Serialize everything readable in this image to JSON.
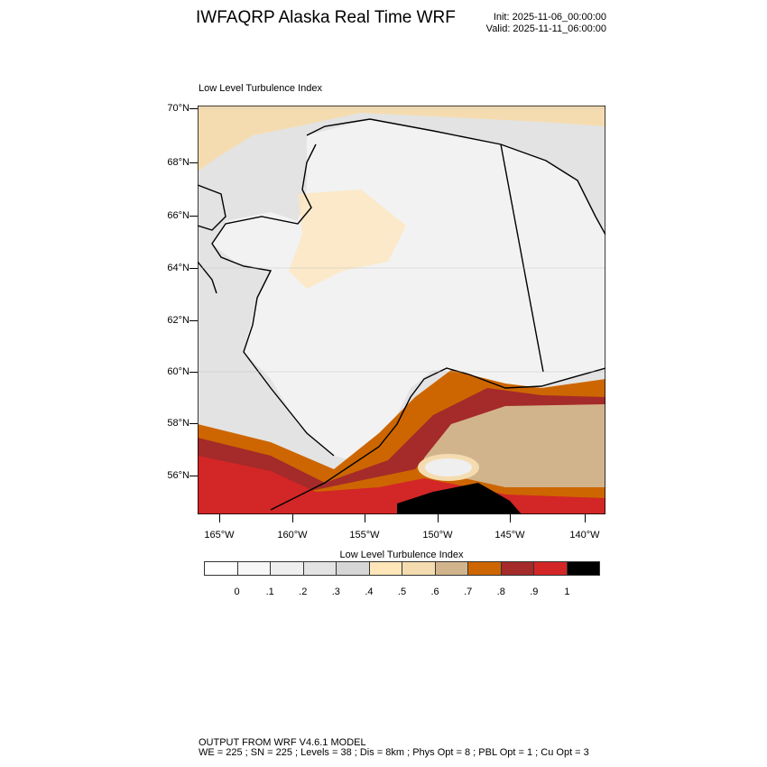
{
  "header": {
    "title": "IWFAQRP Alaska Real Time WRF",
    "init": "Init: 2025-11-06_00:00:00",
    "valid": "Valid: 2025-11-11_06:00:00"
  },
  "map": {
    "subtitle": "Low Level Turbulence Index",
    "lat_labels": [
      "70°N",
      "68°N",
      "66°N",
      "64°N",
      "62°N",
      "60°N",
      "58°N",
      "56°N"
    ],
    "lon_labels": [
      "165°W",
      "160°W",
      "155°W",
      "150°W",
      "145°W",
      "140°W"
    ]
  },
  "colorbar": {
    "title": "Low Level Turbulence Index",
    "colors": [
      "#ffffff",
      "#f7f7f7",
      "#efefef",
      "#e3e3e3",
      "#d6d6d6",
      "#ffe6b8",
      "#f5dcb0",
      "#d2b48c",
      "#cd6600",
      "#a52a2a",
      "#d32626",
      "#000000"
    ],
    "labels": [
      "0",
      ".1",
      ".2",
      ".3",
      ".4",
      ".5",
      ".6",
      ".7",
      ".8",
      ".9",
      "1"
    ]
  },
  "footer": {
    "line1": "OUTPUT FROM WRF V4.6.1 MODEL",
    "line2": "WE = 225 ; SN = 225 ; Levels = 38 ; Dis = 8km ; Phys Opt = 8 ; PBL Opt = 1 ; Cu Opt = 3"
  }
}
